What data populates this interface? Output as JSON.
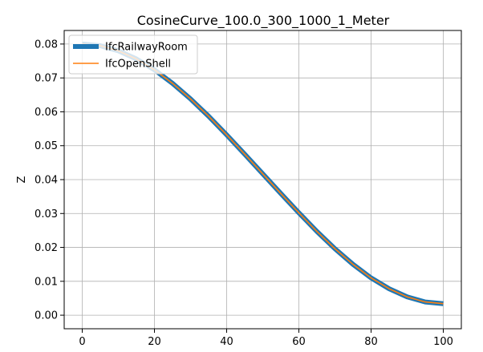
{
  "chart_data": {
    "type": "line",
    "title": "CosineCurve_100.0_300_1000_1_Meter",
    "xlabel": "",
    "ylabel": "Z",
    "xlim": [
      -5,
      105
    ],
    "ylim": [
      -0.004,
      0.084
    ],
    "xticks": [
      0,
      20,
      40,
      60,
      80,
      100
    ],
    "yticks": [
      0.0,
      0.01,
      0.02,
      0.03,
      0.04,
      0.05,
      0.06,
      0.07,
      0.08
    ],
    "ytick_labels": [
      "0.00",
      "0.01",
      "0.02",
      "0.03",
      "0.04",
      "0.05",
      "0.06",
      "0.07",
      "0.08"
    ],
    "grid": true,
    "legend_position": "top-left",
    "series": [
      {
        "name": "IfcRailwayRoom",
        "color": "#1f77b4",
        "style": "thick",
        "x": [
          0,
          5,
          10,
          15,
          20,
          25,
          30,
          35,
          40,
          45,
          50,
          55,
          60,
          65,
          70,
          75,
          80,
          85,
          90,
          95,
          100
        ],
        "y": [
          0.08,
          0.0795,
          0.078,
          0.0756,
          0.0724,
          0.0684,
          0.0638,
          0.0587,
          0.0532,
          0.0475,
          0.0417,
          0.0359,
          0.0302,
          0.0247,
          0.0196,
          0.015,
          0.011,
          0.0078,
          0.0054,
          0.0039,
          0.0034
        ]
      },
      {
        "name": "IfcOpenShell",
        "color": "#ff7f0e",
        "style": "thin",
        "x": [
          0,
          5,
          10,
          15,
          20,
          25,
          30,
          35,
          40,
          45,
          50,
          55,
          60,
          65,
          70,
          75,
          80,
          85,
          90,
          95,
          100
        ],
        "y": [
          0.08,
          0.0795,
          0.078,
          0.0756,
          0.0724,
          0.0684,
          0.0638,
          0.0587,
          0.0532,
          0.0475,
          0.0417,
          0.0359,
          0.0302,
          0.0247,
          0.0196,
          0.015,
          0.011,
          0.0078,
          0.0054,
          0.0039,
          0.0034
        ]
      }
    ]
  }
}
